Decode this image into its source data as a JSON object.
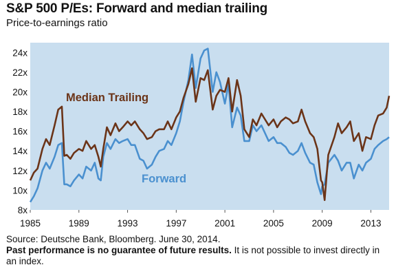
{
  "chart_title": "S&P 500 P/Es: Forward and median trailing",
  "chart_subtitle": "Price-to-earnings ratio",
  "footer": {
    "source": "Source: Deutsche Bank, Bloomberg. June 30, 2014.",
    "disclaimer_bold": "Past performance is no guarantee of future results.",
    "disclaimer_rest": " It is not possible to invest directly in an index."
  },
  "colors": {
    "median_trailing": "#6b3418",
    "forward": "#4a90cf",
    "plot_background": "#c9deef"
  },
  "chart_data": {
    "type": "line",
    "title": "S&P 500 P/Es: Forward and median trailing",
    "subtitle": "Price-to-earnings ratio",
    "xlim": [
      1985,
      2014.5
    ],
    "ylim": [
      8,
      25
    ],
    "x_ticks": [
      1985,
      1989,
      1993,
      1997,
      2001,
      2005,
      2009,
      2013
    ],
    "y_ticks": [
      8,
      10,
      12,
      14,
      16,
      18,
      20,
      22,
      24
    ],
    "y_tick_labels": [
      "8x",
      "10x",
      "12x",
      "14x",
      "16x",
      "18x",
      "20x",
      "22x",
      "24x"
    ],
    "grid": false,
    "legend": "inline labels",
    "series": [
      {
        "name": "Median Trailing",
        "x": [
          1985.0,
          1985.3,
          1985.6,
          1986.0,
          1986.3,
          1986.6,
          1987.0,
          1987.3,
          1987.6,
          1987.8,
          1988.0,
          1988.3,
          1988.6,
          1989.0,
          1989.3,
          1989.6,
          1990.0,
          1990.3,
          1990.6,
          1990.8,
          1991.0,
          1991.3,
          1991.6,
          1992.0,
          1992.3,
          1992.6,
          1993.0,
          1993.3,
          1993.6,
          1994.0,
          1994.3,
          1994.6,
          1995.0,
          1995.3,
          1995.6,
          1996.0,
          1996.3,
          1996.6,
          1997.0,
          1997.3,
          1997.6,
          1998.0,
          1998.3,
          1998.6,
          1999.0,
          1999.3,
          1999.6,
          2000.0,
          2000.3,
          2000.6,
          2001.0,
          2001.3,
          2001.6,
          2002.0,
          2002.3,
          2002.6,
          2003.0,
          2003.3,
          2003.6,
          2004.0,
          2004.3,
          2004.6,
          2005.0,
          2005.3,
          2005.6,
          2006.0,
          2006.3,
          2006.6,
          2007.0,
          2007.3,
          2007.6,
          2008.0,
          2008.3,
          2008.6,
          2008.9,
          2009.0,
          2009.2,
          2009.5,
          2010.0,
          2010.3,
          2010.6,
          2011.0,
          2011.3,
          2011.6,
          2012.0,
          2012.3,
          2012.6,
          2013.0,
          2013.3,
          2013.6,
          2014.0,
          2014.3,
          2014.5
        ],
        "values": [
          11.0,
          11.8,
          12.2,
          14.2,
          15.2,
          14.6,
          16.6,
          18.2,
          18.5,
          13.5,
          13.6,
          13.2,
          13.8,
          14.2,
          14.0,
          15.0,
          14.2,
          14.6,
          13.4,
          12.4,
          14.2,
          16.4,
          15.6,
          16.8,
          16.0,
          16.4,
          17.0,
          16.6,
          17.0,
          16.2,
          15.8,
          15.2,
          15.4,
          16.0,
          16.2,
          16.2,
          17.0,
          16.2,
          17.4,
          18.0,
          19.4,
          20.8,
          22.4,
          19.0,
          21.4,
          21.2,
          22.2,
          18.2,
          19.6,
          20.2,
          20.0,
          21.4,
          18.0,
          21.2,
          19.6,
          16.2,
          15.4,
          17.2,
          16.6,
          17.8,
          17.2,
          16.6,
          17.2,
          16.4,
          17.0,
          17.4,
          17.2,
          16.8,
          17.0,
          18.2,
          17.0,
          15.8,
          15.4,
          14.2,
          11.0,
          10.8,
          9.0,
          13.6,
          15.4,
          16.8,
          15.8,
          16.4,
          17.0,
          15.0,
          15.8,
          14.0,
          15.4,
          15.2,
          16.6,
          17.6,
          17.8,
          18.4,
          19.6
        ]
      },
      {
        "name": "Forward",
        "x": [
          1985.0,
          1985.3,
          1985.6,
          1986.0,
          1986.3,
          1986.6,
          1987.0,
          1987.3,
          1987.6,
          1987.8,
          1988.0,
          1988.3,
          1988.6,
          1989.0,
          1989.3,
          1989.6,
          1990.0,
          1990.3,
          1990.6,
          1990.8,
          1991.0,
          1991.3,
          1991.6,
          1992.0,
          1992.3,
          1992.6,
          1993.0,
          1993.3,
          1993.6,
          1994.0,
          1994.3,
          1994.6,
          1995.0,
          1995.3,
          1995.6,
          1996.0,
          1996.3,
          1996.6,
          1997.0,
          1997.3,
          1997.6,
          1998.0,
          1998.3,
          1998.6,
          1999.0,
          1999.3,
          1999.6,
          2000.0,
          2000.3,
          2000.6,
          2001.0,
          2001.3,
          2001.6,
          2002.0,
          2002.3,
          2002.6,
          2003.0,
          2003.3,
          2003.6,
          2004.0,
          2004.3,
          2004.6,
          2005.0,
          2005.3,
          2005.6,
          2006.0,
          2006.3,
          2006.6,
          2007.0,
          2007.3,
          2007.6,
          2008.0,
          2008.3,
          2008.6,
          2008.9,
          2009.0,
          2009.2,
          2009.5,
          2010.0,
          2010.3,
          2010.6,
          2011.0,
          2011.3,
          2011.6,
          2012.0,
          2012.3,
          2012.6,
          2013.0,
          2013.3,
          2013.6,
          2014.0,
          2014.3,
          2014.5
        ],
        "values": [
          8.8,
          9.4,
          10.2,
          12.0,
          12.8,
          12.2,
          13.4,
          14.6,
          14.8,
          10.6,
          10.6,
          10.4,
          11.0,
          11.6,
          11.2,
          12.4,
          12.0,
          12.8,
          11.2,
          11.0,
          13.4,
          14.8,
          14.2,
          15.2,
          14.8,
          15.0,
          15.2,
          14.6,
          14.6,
          13.2,
          13.0,
          12.2,
          12.6,
          13.4,
          14.0,
          14.2,
          15.0,
          14.6,
          15.8,
          17.0,
          19.0,
          21.2,
          23.8,
          20.4,
          23.4,
          24.2,
          24.4,
          20.0,
          22.0,
          21.0,
          18.8,
          20.8,
          16.4,
          18.4,
          17.6,
          15.0,
          15.0,
          16.6,
          16.0,
          16.6,
          15.8,
          15.0,
          15.4,
          14.8,
          14.8,
          14.4,
          13.8,
          13.6,
          14.0,
          14.8,
          13.8,
          12.8,
          12.6,
          10.8,
          9.6,
          10.4,
          10.6,
          12.8,
          13.6,
          13.0,
          12.0,
          12.8,
          12.8,
          11.2,
          12.6,
          12.0,
          12.8,
          13.2,
          14.2,
          14.6,
          15.0,
          15.2,
          15.4
        ]
      }
    ]
  }
}
